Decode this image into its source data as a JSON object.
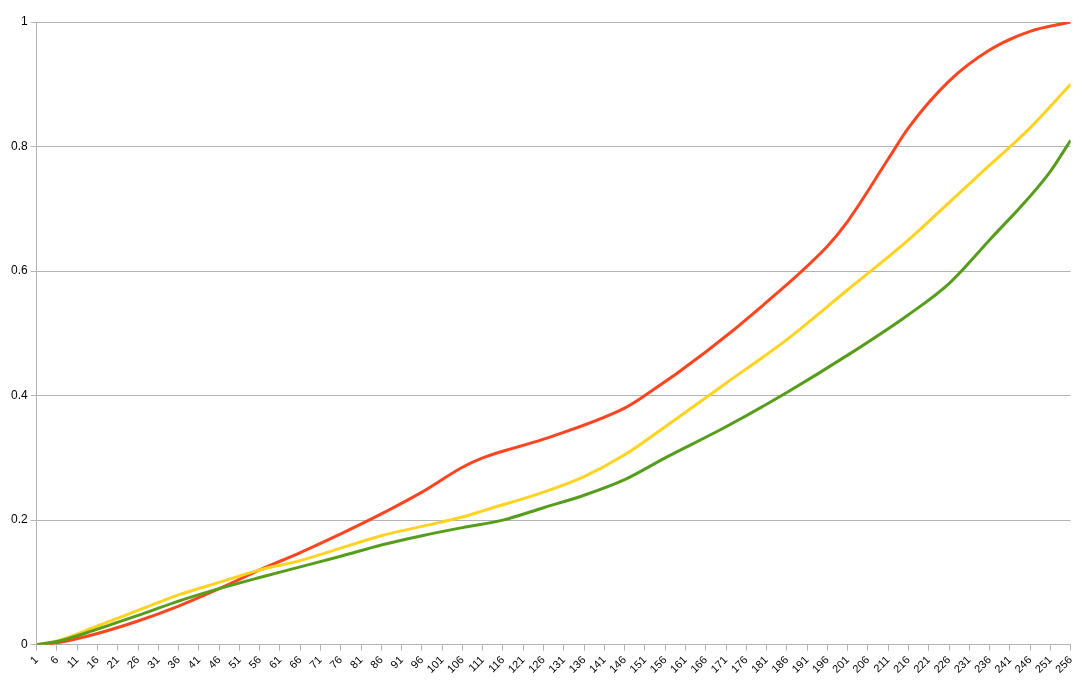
{
  "chart_data": {
    "type": "line",
    "xlim": [
      1,
      256
    ],
    "xticks": [
      1,
      6,
      11,
      16,
      21,
      26,
      31,
      36,
      41,
      46,
      51,
      56,
      61,
      66,
      71,
      76,
      81,
      86,
      91,
      96,
      101,
      106,
      111,
      116,
      121,
      126,
      131,
      136,
      141,
      146,
      151,
      156,
      161,
      166,
      171,
      176,
      181,
      186,
      191,
      196,
      201,
      206,
      211,
      216,
      221,
      226,
      231,
      236,
      241,
      246,
      251,
      256
    ],
    "ylim": [
      0,
      1
    ],
    "yticks": [
      0,
      0.2,
      0.4,
      0.6,
      0.8,
      1
    ],
    "grid": "y",
    "legend": false,
    "marker": "none",
    "line_style": "solid",
    "series": [
      {
        "color": "#ff4520",
        "x": [
          1,
          6,
          16,
          26,
          36,
          46,
          56,
          66,
          76,
          86,
          96,
          106,
          111,
          126,
          146,
          151,
          166,
          181,
          196,
          201,
          211,
          216,
          226,
          236,
          246,
          256
        ],
        "values": [
          0,
          0.003,
          0.018,
          0.038,
          0.062,
          0.09,
          0.12,
          0.148,
          0.178,
          0.21,
          0.245,
          0.285,
          0.3,
          0.33,
          0.38,
          0.4,
          0.47,
          0.55,
          0.64,
          0.68,
          0.78,
          0.83,
          0.905,
          0.955,
          0.985,
          1
        ]
      },
      {
        "color": "#ffd320",
        "x": [
          1,
          6,
          16,
          26,
          36,
          46,
          56,
          66,
          76,
          86,
          96,
          106,
          111,
          126,
          136,
          146,
          156,
          171,
          186,
          201,
          216,
          226,
          236,
          246,
          256
        ],
        "values": [
          0,
          0.006,
          0.03,
          0.055,
          0.08,
          0.1,
          0.12,
          0.135,
          0.155,
          0.175,
          0.19,
          0.205,
          0.215,
          0.245,
          0.27,
          0.305,
          0.35,
          0.42,
          0.49,
          0.57,
          0.65,
          0.71,
          0.77,
          0.83,
          0.9
        ]
      },
      {
        "color": "#579d1c",
        "x": [
          1,
          6,
          16,
          26,
          36,
          46,
          56,
          66,
          76,
          86,
          96,
          106,
          116,
          126,
          136,
          146,
          156,
          171,
          186,
          201,
          216,
          226,
          236,
          246,
          251,
          256
        ],
        "values": [
          0,
          0.005,
          0.025,
          0.047,
          0.07,
          0.09,
          0.108,
          0.125,
          0.142,
          0.16,
          0.175,
          0.188,
          0.2,
          0.22,
          0.24,
          0.265,
          0.3,
          0.35,
          0.405,
          0.465,
          0.53,
          0.58,
          0.65,
          0.72,
          0.76,
          0.81
        ]
      }
    ]
  }
}
